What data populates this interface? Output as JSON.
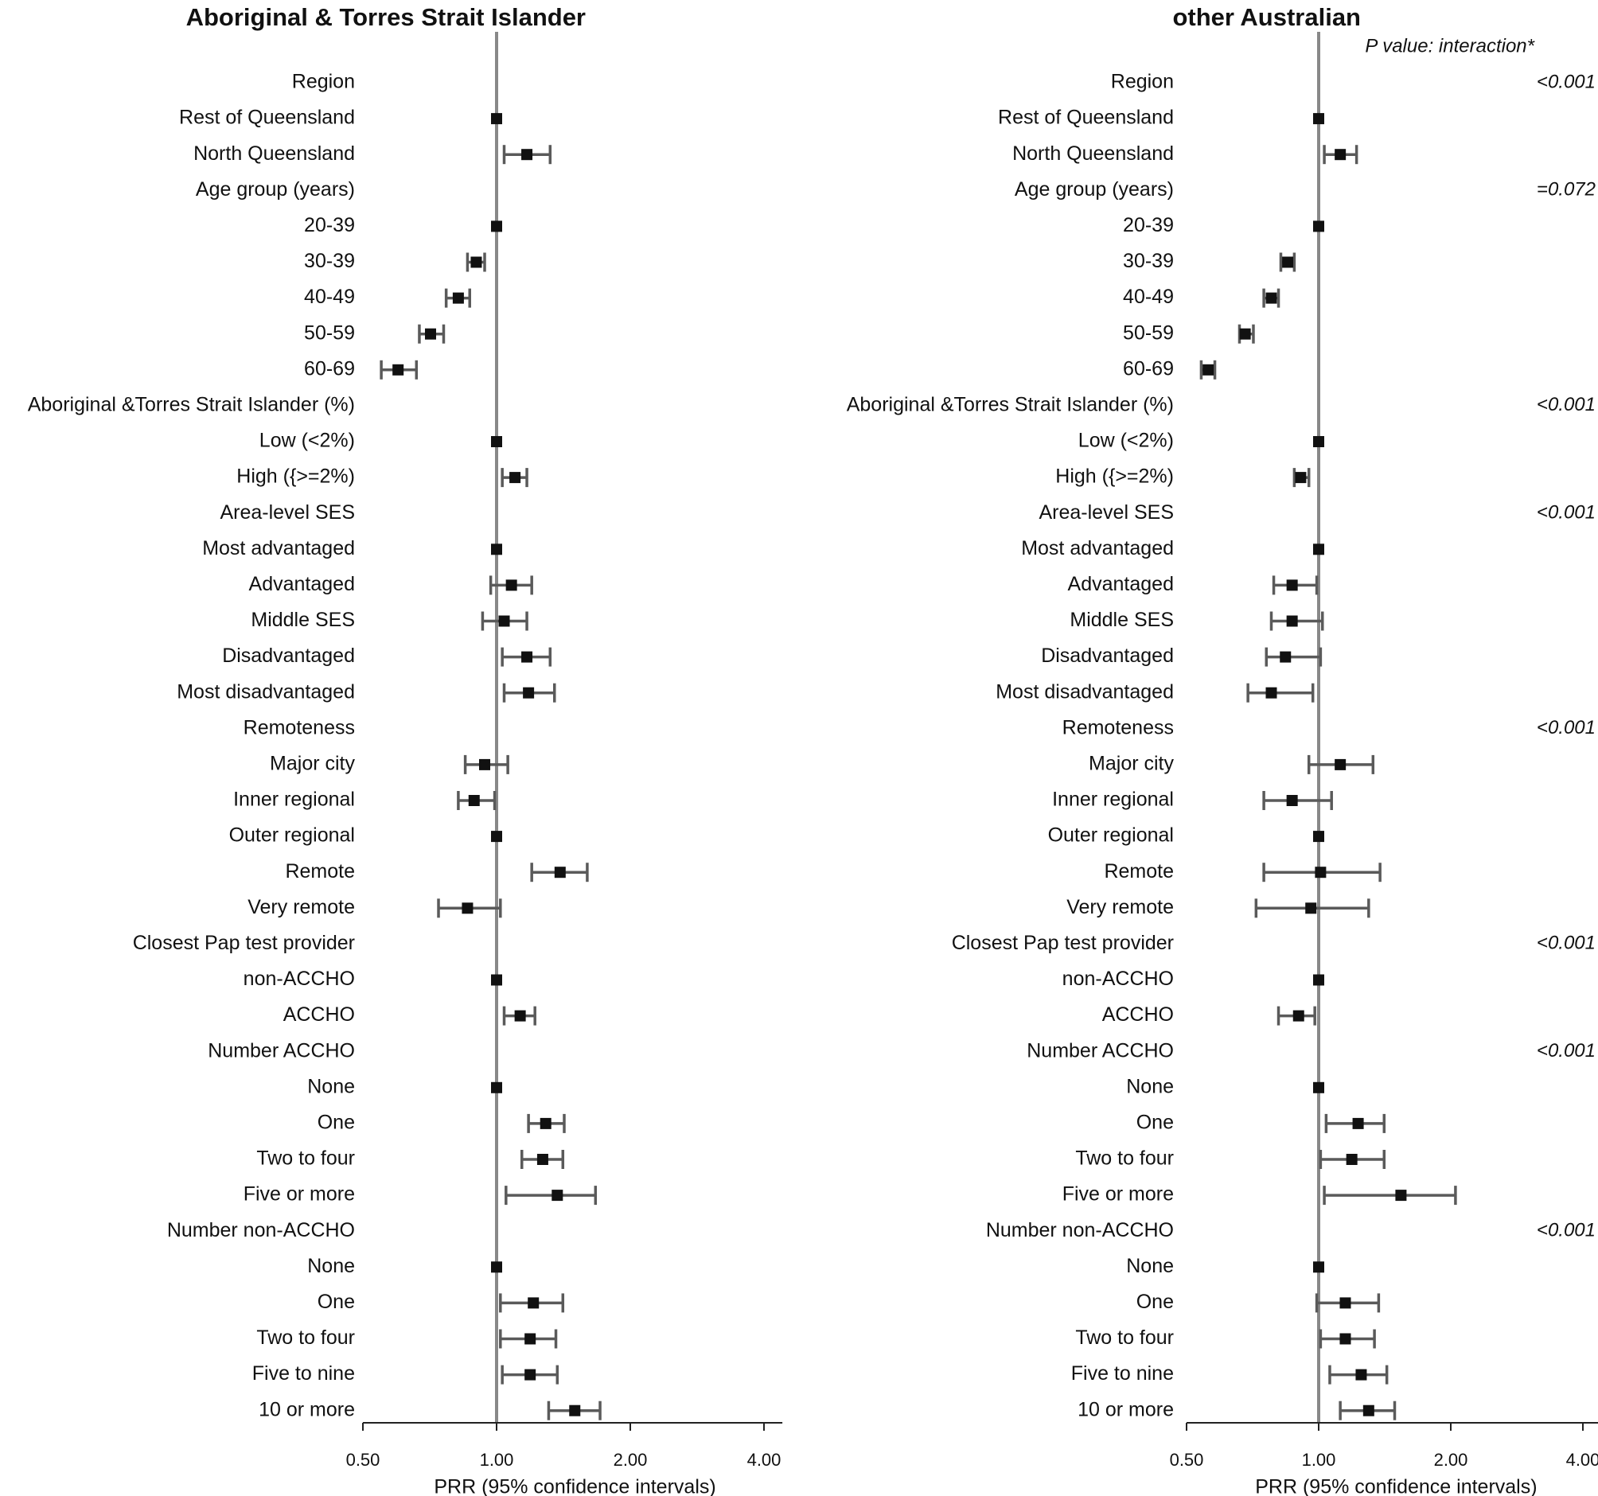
{
  "chart_data": {
    "type": "forest",
    "scale": "log",
    "ticks": [
      0.5,
      1.0,
      2.0,
      4.0
    ],
    "tick_labels": [
      "0.50",
      "1.00",
      "2.00",
      "4.00"
    ],
    "xlim": [
      0.5,
      4.4
    ],
    "xlabel": "PRR (95% confidence intervals)",
    "pvalue_header": "P value: interaction*",
    "rows": [
      {
        "label": "Region",
        "header": true,
        "p": "<0.001"
      },
      {
        "label": "Rest of Queensland",
        "ind": [
          1.0,
          1.0,
          1.0
        ],
        "oth": [
          1.0,
          1.0,
          1.0
        ]
      },
      {
        "label": "North Queensland",
        "ind": [
          1.17,
          1.04,
          1.32
        ],
        "oth": [
          1.12,
          1.03,
          1.22
        ]
      },
      {
        "label": "Age group (years)",
        "header": true,
        "p": "=0.072"
      },
      {
        "label": "20-39",
        "ind": [
          1.0,
          1.0,
          1.0
        ],
        "oth": [
          1.0,
          1.0,
          1.0
        ]
      },
      {
        "label": "30-39",
        "ind": [
          0.9,
          0.86,
          0.94
        ],
        "oth": [
          0.85,
          0.82,
          0.88
        ]
      },
      {
        "label": "40-49",
        "ind": [
          0.82,
          0.77,
          0.87
        ],
        "oth": [
          0.78,
          0.75,
          0.81
        ]
      },
      {
        "label": "50-59",
        "ind": [
          0.71,
          0.67,
          0.76
        ],
        "oth": [
          0.68,
          0.66,
          0.71
        ]
      },
      {
        "label": "60-69",
        "ind": [
          0.6,
          0.55,
          0.66
        ],
        "oth": [
          0.56,
          0.54,
          0.58
        ]
      },
      {
        "label": "Aboriginal &Torres Strait Islander (%)",
        "header": true,
        "p": "<0.001"
      },
      {
        "label": "Low (<2%)",
        "ind": [
          1.0,
          1.0,
          1.0
        ],
        "oth": [
          1.0,
          1.0,
          1.0
        ]
      },
      {
        "label": "High ({>=2%)",
        "ind": [
          1.1,
          1.03,
          1.17
        ],
        "oth": [
          0.91,
          0.88,
          0.95
        ]
      },
      {
        "label": "Area-level SES",
        "header": true,
        "p": "<0.001"
      },
      {
        "label": "Most advantaged",
        "ind": [
          1.0,
          1.0,
          1.0
        ],
        "oth": [
          1.0,
          1.0,
          1.0
        ]
      },
      {
        "label": "Advantaged",
        "ind": [
          1.08,
          0.97,
          1.2
        ],
        "oth": [
          0.87,
          0.79,
          0.99
        ]
      },
      {
        "label": "Middle SES",
        "ind": [
          1.04,
          0.93,
          1.17
        ],
        "oth": [
          0.87,
          0.78,
          1.02
        ]
      },
      {
        "label": "Disadvantaged",
        "ind": [
          1.17,
          1.03,
          1.32
        ],
        "oth": [
          0.84,
          0.76,
          1.01
        ]
      },
      {
        "label": "Most disadvantaged",
        "ind": [
          1.18,
          1.04,
          1.35
        ],
        "oth": [
          0.78,
          0.69,
          0.97
        ]
      },
      {
        "label": "Remoteness",
        "header": true,
        "p": "<0.001"
      },
      {
        "label": "Major city",
        "ind": [
          0.94,
          0.85,
          1.06
        ],
        "oth": [
          1.12,
          0.95,
          1.33
        ]
      },
      {
        "label": "Inner regional",
        "ind": [
          0.89,
          0.82,
          0.99
        ],
        "oth": [
          0.87,
          0.75,
          1.07
        ]
      },
      {
        "label": "Outer regional",
        "ind": [
          1.0,
          1.0,
          1.0
        ],
        "oth": [
          1.0,
          1.0,
          1.0
        ]
      },
      {
        "label": "Remote",
        "ind": [
          1.39,
          1.2,
          1.6
        ],
        "oth": [
          1.01,
          0.75,
          1.38
        ]
      },
      {
        "label": "Very remote",
        "ind": [
          0.86,
          0.74,
          1.02
        ],
        "oth": [
          0.96,
          0.72,
          1.3
        ]
      },
      {
        "label": "Closest Pap test provider",
        "header": true,
        "p": "<0.001"
      },
      {
        "label": "non-ACCHO",
        "ind": [
          1.0,
          1.0,
          1.0
        ],
        "oth": [
          1.0,
          1.0,
          1.0
        ]
      },
      {
        "label": "ACCHO",
        "ind": [
          1.13,
          1.04,
          1.22
        ],
        "oth": [
          0.9,
          0.81,
          0.98
        ]
      },
      {
        "label": "Number ACCHO",
        "header": true,
        "p": "<0.001"
      },
      {
        "label": "None",
        "ind": [
          1.0,
          1.0,
          1.0
        ],
        "oth": [
          1.0,
          1.0,
          1.0
        ]
      },
      {
        "label": "One",
        "ind": [
          1.29,
          1.18,
          1.42
        ],
        "oth": [
          1.23,
          1.04,
          1.41
        ]
      },
      {
        "label": "Two to four",
        "ind": [
          1.27,
          1.14,
          1.41
        ],
        "oth": [
          1.19,
          1.01,
          1.41
        ]
      },
      {
        "label": "Five or more",
        "ind": [
          1.37,
          1.05,
          1.67
        ],
        "oth": [
          1.54,
          1.03,
          2.05
        ]
      },
      {
        "label": "Number non-ACCHO",
        "header": true,
        "p": "<0.001"
      },
      {
        "label": "None",
        "ind": [
          1.0,
          1.0,
          1.0
        ],
        "oth": [
          1.0,
          1.0,
          1.0
        ]
      },
      {
        "label": "One",
        "ind": [
          1.21,
          1.02,
          1.41
        ],
        "oth": [
          1.15,
          0.99,
          1.37
        ]
      },
      {
        "label": "Two to four",
        "ind": [
          1.19,
          1.02,
          1.36
        ],
        "oth": [
          1.15,
          1.01,
          1.34
        ]
      },
      {
        "label": "Five to nine",
        "ind": [
          1.19,
          1.03,
          1.37
        ],
        "oth": [
          1.25,
          1.06,
          1.43
        ]
      },
      {
        "label": "10 or more",
        "ind": [
          1.5,
          1.31,
          1.71
        ],
        "oth": [
          1.3,
          1.12,
          1.49
        ]
      }
    ],
    "panels": [
      {
        "id": "indigenous",
        "title": "Aboriginal & Torres Strait Islander",
        "key": "ind"
      },
      {
        "id": "other",
        "title": "other Australian",
        "key": "oth"
      }
    ]
  }
}
